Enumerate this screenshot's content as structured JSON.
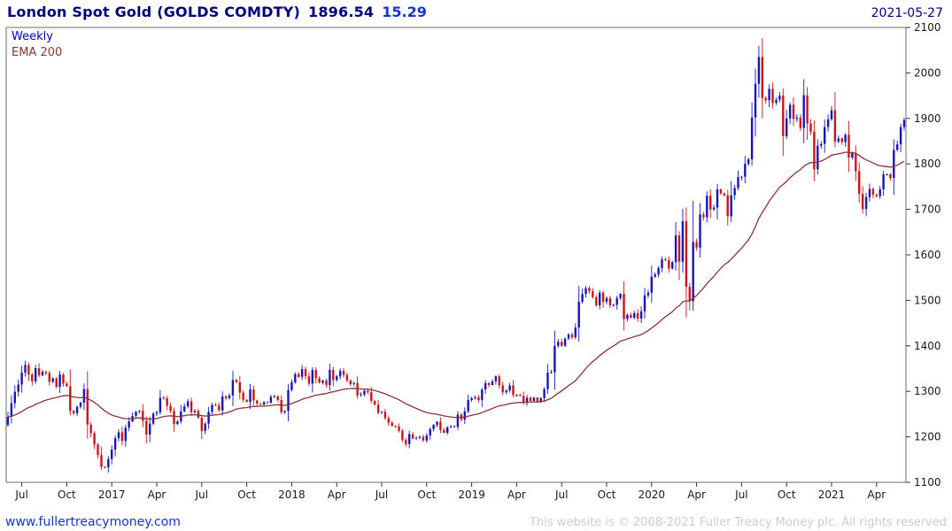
{
  "header": {
    "title": "London Spot Gold (GOLDS COMDTY)",
    "last_price": "1896.54",
    "change": "15.29",
    "date": "2021-05-27"
  },
  "legend": {
    "interval": "Weekly",
    "overlay": "EMA 200"
  },
  "footer": {
    "link": "www.fullertreacymoney.com",
    "copyright": "This website is © 2008-2021 Fuller Treacy Money plc. All rights reserved"
  },
  "chart_data": {
    "type": "candlestick",
    "title": "London Spot Gold (GOLDS COMDTY)",
    "interval": "Weekly",
    "overlay": "EMA 200",
    "x_axis_start": "Jun 2016",
    "x_axis_end": "May 2021",
    "ylim": [
      1100,
      2100
    ],
    "y_ticks": [
      1100,
      1200,
      1300,
      1400,
      1500,
      1600,
      1700,
      1800,
      1900,
      2000,
      2100
    ],
    "x_ticks": [
      {
        "label": "Jul",
        "week": 4
      },
      {
        "label": "Oct",
        "week": 17
      },
      {
        "label": "2017",
        "week": 30
      },
      {
        "label": "Apr",
        "week": 43
      },
      {
        "label": "Jul",
        "week": 56
      },
      {
        "label": "Oct",
        "week": 69
      },
      {
        "label": "2018",
        "week": 82
      },
      {
        "label": "Apr",
        "week": 95
      },
      {
        "label": "Jul",
        "week": 108
      },
      {
        "label": "Oct",
        "week": 121
      },
      {
        "label": "2019",
        "week": 134
      },
      {
        "label": "Apr",
        "week": 147
      },
      {
        "label": "Jul",
        "week": 160
      },
      {
        "label": "Oct",
        "week": 173
      },
      {
        "label": "2020",
        "week": 186
      },
      {
        "label": "Apr",
        "week": 199
      },
      {
        "label": "Jul",
        "week": 212
      },
      {
        "label": "Oct",
        "week": 225
      },
      {
        "label": "2021",
        "week": 238
      },
      {
        "label": "Apr",
        "week": 251
      }
    ],
    "ema_period_weeks": 40,
    "weekly_closes": [
      1244,
      1274,
      1299,
      1315,
      1341,
      1358,
      1337,
      1322,
      1351,
      1335,
      1343,
      1340,
      1321,
      1328,
      1310,
      1337,
      1317,
      1311,
      1257,
      1252,
      1266,
      1275,
      1305,
      1227,
      1208,
      1183,
      1160,
      1134,
      1133,
      1151,
      1172,
      1197,
      1210,
      1191,
      1220,
      1234,
      1246,
      1255,
      1257,
      1235,
      1205,
      1229,
      1251,
      1254,
      1286,
      1285,
      1268,
      1257,
      1228,
      1234,
      1256,
      1267,
      1278,
      1254,
      1257,
      1242,
      1213,
      1229,
      1255,
      1270,
      1269,
      1258,
      1289,
      1285,
      1291,
      1325,
      1320,
      1297,
      1281,
      1277,
      1304,
      1280,
      1273,
      1271,
      1276,
      1275,
      1288,
      1289,
      1281,
      1254,
      1257,
      1303,
      1320,
      1338,
      1332,
      1349,
      1333,
      1317,
      1347,
      1329,
      1319,
      1324,
      1314,
      1347,
      1325,
      1333,
      1345,
      1336,
      1324,
      1316,
      1318,
      1291,
      1293,
      1301,
      1298,
      1279,
      1271,
      1253,
      1255,
      1241,
      1231,
      1224,
      1223,
      1213,
      1193,
      1184,
      1206,
      1196,
      1198,
      1200,
      1192,
      1203,
      1217,
      1226,
      1233,
      1215,
      1209,
      1221,
      1223,
      1222,
      1249,
      1238,
      1256,
      1281,
      1285,
      1287,
      1281,
      1304,
      1318,
      1314,
      1322,
      1333,
      1313,
      1298,
      1302,
      1313,
      1292,
      1292,
      1290,
      1275,
      1286,
      1279,
      1286,
      1278,
      1285,
      1305,
      1341,
      1342,
      1400,
      1409,
      1400,
      1416,
      1425,
      1419,
      1440,
      1497,
      1514,
      1527,
      1520,
      1507,
      1489,
      1517,
      1497,
      1505,
      1489,
      1490,
      1505,
      1514,
      1459,
      1468,
      1462,
      1472,
      1460,
      1476,
      1511,
      1517,
      1552,
      1557,
      1571,
      1590,
      1589,
      1570,
      1584,
      1643,
      1585,
      1674,
      1530,
      1498,
      1628,
      1616,
      1689,
      1683,
      1730,
      1700,
      1704,
      1744,
      1735,
      1731,
      1685,
      1731,
      1747,
      1771,
      1772,
      1800,
      1810,
      1902,
      1976,
      2035,
      1945,
      1940,
      1965,
      1934,
      1941,
      1950,
      1861,
      1900,
      1930,
      1899,
      1902,
      1879,
      1951,
      1889,
      1871,
      1788,
      1840,
      1844,
      1881,
      1898,
      1918,
      1849,
      1856,
      1848,
      1864,
      1814,
      1824,
      1784,
      1734,
      1701,
      1727,
      1745,
      1732,
      1729,
      1744,
      1777,
      1777,
      1769,
      1831,
      1843,
      1881,
      1896.5
    ],
    "colors": {
      "up_candle": "#1616bb",
      "down_candle": "#cc1414",
      "ema_line": "#8b3434",
      "title_text": "#000080",
      "change_text": "#1436cc",
      "link_text": "#1436cc",
      "copyright_text": "#c9ccd1"
    }
  }
}
